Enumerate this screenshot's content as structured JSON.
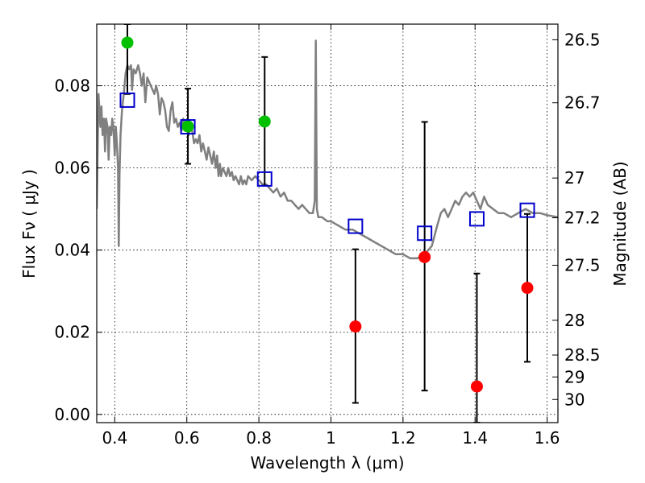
{
  "chart_data": {
    "type": "scatter",
    "xlabel": "Wavelength  λ (μm)",
    "ylabel": "Flux  Fν  ( μJy )",
    "y2label": "Magnitude (AB)",
    "xlim": [
      0.35,
      1.63
    ],
    "ylim": [
      -0.002,
      0.095
    ],
    "grid": true,
    "xticks": [
      0.4,
      0.6,
      0.8,
      1.0,
      1.2,
      1.4,
      1.6
    ],
    "xtick_labels": [
      "0.4",
      "0.6",
      "0.8",
      "1",
      "1.2",
      "1.4",
      "1.6"
    ],
    "yticks": [
      0.0,
      0.02,
      0.04,
      0.06,
      0.08
    ],
    "ytick_labels": [
      "0.00",
      "0.02",
      "0.04",
      "0.06",
      "0.08"
    ],
    "right_ticks": [
      {
        "label": "26.5",
        "mag": 26.5
      },
      {
        "label": "26.7",
        "mag": 26.7
      },
      {
        "label": "27",
        "mag": 27.0
      },
      {
        "label": "27.2",
        "mag": 27.2
      },
      {
        "label": "27.5",
        "mag": 27.5
      },
      {
        "label": "28",
        "mag": 28.0
      },
      {
        "label": "28.5",
        "mag": 28.5
      },
      {
        "label": "29",
        "mag": 29.0
      },
      {
        "label": "30",
        "mag": 30.0
      }
    ],
    "colors": {
      "model": "#808080",
      "squares": "#0000cc",
      "detections": "#00c000",
      "nondetections": "#ff0000",
      "errorbars": "#000000"
    },
    "series": [
      {
        "type": "line",
        "points": [
          [
            0.35,
            0.05
          ],
          [
            0.355,
            0.078
          ],
          [
            0.36,
            0.07
          ],
          [
            0.363,
            0.075
          ],
          [
            0.366,
            0.068
          ],
          [
            0.37,
            0.072
          ],
          [
            0.373,
            0.064
          ],
          [
            0.376,
            0.072
          ],
          [
            0.38,
            0.07
          ],
          [
            0.383,
            0.062
          ],
          [
            0.386,
            0.07
          ],
          [
            0.39,
            0.068
          ],
          [
            0.393,
            0.072
          ],
          [
            0.396,
            0.07
          ],
          [
            0.4,
            0.063
          ],
          [
            0.403,
            0.07
          ],
          [
            0.406,
            0.066
          ],
          [
            0.409,
            0.06
          ],
          [
            0.411,
            0.041
          ],
          [
            0.413,
            0.058
          ],
          [
            0.416,
            0.068
          ],
          [
            0.42,
            0.074
          ],
          [
            0.425,
            0.078
          ],
          [
            0.43,
            0.083
          ],
          [
            0.435,
            0.085
          ],
          [
            0.44,
            0.084
          ],
          [
            0.445,
            0.085
          ],
          [
            0.448,
            0.079
          ],
          [
            0.452,
            0.084
          ],
          [
            0.458,
            0.083
          ],
          [
            0.465,
            0.085
          ],
          [
            0.47,
            0.083
          ],
          [
            0.475,
            0.08
          ],
          [
            0.48,
            0.083
          ],
          [
            0.485,
            0.076
          ],
          [
            0.49,
            0.082
          ],
          [
            0.5,
            0.08
          ],
          [
            0.505,
            0.079
          ],
          [
            0.51,
            0.078
          ],
          [
            0.515,
            0.08
          ],
          [
            0.52,
            0.078
          ],
          [
            0.525,
            0.073
          ],
          [
            0.53,
            0.077
          ],
          [
            0.535,
            0.076
          ],
          [
            0.54,
            0.074
          ],
          [
            0.545,
            0.07
          ],
          [
            0.55,
            0.069
          ],
          [
            0.555,
            0.074
          ],
          [
            0.56,
            0.076
          ],
          [
            0.565,
            0.071
          ],
          [
            0.57,
            0.072
          ],
          [
            0.575,
            0.07
          ],
          [
            0.58,
            0.071
          ],
          [
            0.585,
            0.069
          ],
          [
            0.59,
            0.072
          ],
          [
            0.595,
            0.07
          ],
          [
            0.6,
            0.071
          ],
          [
            0.605,
            0.068
          ],
          [
            0.61,
            0.07
          ],
          [
            0.615,
            0.069
          ],
          [
            0.62,
            0.066
          ],
          [
            0.625,
            0.067
          ],
          [
            0.63,
            0.066
          ],
          [
            0.635,
            0.068
          ],
          [
            0.64,
            0.064
          ],
          [
            0.645,
            0.066
          ],
          [
            0.65,
            0.064
          ],
          [
            0.655,
            0.062
          ],
          [
            0.66,
            0.065
          ],
          [
            0.665,
            0.063
          ],
          [
            0.67,
            0.061
          ],
          [
            0.675,
            0.064
          ],
          [
            0.68,
            0.06
          ],
          [
            0.684,
            0.063
          ],
          [
            0.688,
            0.058
          ],
          [
            0.692,
            0.061
          ],
          [
            0.695,
            0.058
          ],
          [
            0.7,
            0.06
          ],
          [
            0.705,
            0.059
          ],
          [
            0.71,
            0.058
          ],
          [
            0.715,
            0.06
          ],
          [
            0.72,
            0.058
          ],
          [
            0.725,
            0.059
          ],
          [
            0.73,
            0.057
          ],
          [
            0.735,
            0.058
          ],
          [
            0.74,
            0.057
          ],
          [
            0.745,
            0.056
          ],
          [
            0.75,
            0.058
          ],
          [
            0.755,
            0.056
          ],
          [
            0.76,
            0.057
          ],
          [
            0.765,
            0.056
          ],
          [
            0.77,
            0.058
          ],
          [
            0.78,
            0.057
          ],
          [
            0.79,
            0.058
          ],
          [
            0.8,
            0.057
          ],
          [
            0.81,
            0.056
          ],
          [
            0.82,
            0.056
          ],
          [
            0.83,
            0.055
          ],
          [
            0.84,
            0.054
          ],
          [
            0.85,
            0.055
          ],
          [
            0.86,
            0.053
          ],
          [
            0.87,
            0.054
          ],
          [
            0.88,
            0.052
          ],
          [
            0.89,
            0.052
          ],
          [
            0.9,
            0.051
          ],
          [
            0.91,
            0.05
          ],
          [
            0.92,
            0.051
          ],
          [
            0.93,
            0.05
          ],
          [
            0.94,
            0.049
          ],
          [
            0.95,
            0.049
          ],
          [
            0.955,
            0.052
          ],
          [
            0.958,
            0.091
          ],
          [
            0.961,
            0.05
          ],
          [
            0.965,
            0.048
          ],
          [
            0.975,
            0.048
          ],
          [
            0.99,
            0.047
          ],
          [
            1.0,
            0.047
          ],
          [
            1.02,
            0.046
          ],
          [
            1.04,
            0.045
          ],
          [
            1.06,
            0.045
          ],
          [
            1.08,
            0.044
          ],
          [
            1.1,
            0.043
          ],
          [
            1.12,
            0.042
          ],
          [
            1.14,
            0.041
          ],
          [
            1.16,
            0.04
          ],
          [
            1.18,
            0.039
          ],
          [
            1.2,
            0.039
          ],
          [
            1.22,
            0.038
          ],
          [
            1.24,
            0.038
          ],
          [
            1.26,
            0.039
          ],
          [
            1.28,
            0.041
          ],
          [
            1.295,
            0.046
          ],
          [
            1.305,
            0.049
          ],
          [
            1.315,
            0.05
          ],
          [
            1.325,
            0.048
          ],
          [
            1.335,
            0.05
          ],
          [
            1.345,
            0.052
          ],
          [
            1.355,
            0.051
          ],
          [
            1.365,
            0.053
          ],
          [
            1.375,
            0.054
          ],
          [
            1.385,
            0.053
          ],
          [
            1.395,
            0.054
          ],
          [
            1.405,
            0.052
          ],
          [
            1.415,
            0.05
          ],
          [
            1.425,
            0.053
          ],
          [
            1.435,
            0.051
          ],
          [
            1.45,
            0.05
          ],
          [
            1.465,
            0.049
          ],
          [
            1.48,
            0.049
          ],
          [
            1.5,
            0.048
          ],
          [
            1.52,
            0.049
          ],
          [
            1.54,
            0.05
          ],
          [
            1.56,
            0.049
          ],
          [
            1.58,
            0.049
          ],
          [
            1.6,
            0.0485
          ],
          [
            1.63,
            0.048
          ]
        ]
      },
      {
        "type": "markers-square",
        "points": [
          [
            0.435,
            0.0765
          ],
          [
            0.603,
            0.07
          ],
          [
            0.816,
            0.0573
          ],
          [
            1.068,
            0.0458
          ],
          [
            1.26,
            0.0441
          ],
          [
            1.405,
            0.0476
          ],
          [
            1.545,
            0.0497
          ]
        ]
      },
      {
        "type": "errorbar-circle",
        "points": [
          {
            "x": 0.435,
            "y": 0.0905,
            "lo": 0.078,
            "hi": 0.095,
            "color": "detections"
          },
          {
            "x": 0.603,
            "y": 0.0701,
            "lo": 0.061,
            "hi": 0.0793,
            "color": "detections"
          },
          {
            "x": 0.816,
            "y": 0.0713,
            "lo": 0.0557,
            "hi": 0.087,
            "color": "detections"
          },
          {
            "x": 1.068,
            "y": 0.0214,
            "lo": 0.0028,
            "hi": 0.0402,
            "color": "nondetections"
          },
          {
            "x": 1.26,
            "y": 0.0383,
            "lo": 0.0058,
            "hi": 0.0712,
            "color": "nondetections"
          },
          {
            "x": 1.405,
            "y": 0.0068,
            "lo": -0.002,
            "hi": 0.0343,
            "color": "nondetections"
          },
          {
            "x": 1.545,
            "y": 0.0308,
            "lo": 0.0128,
            "hi": 0.0488,
            "color": "nondetections"
          }
        ]
      }
    ]
  }
}
